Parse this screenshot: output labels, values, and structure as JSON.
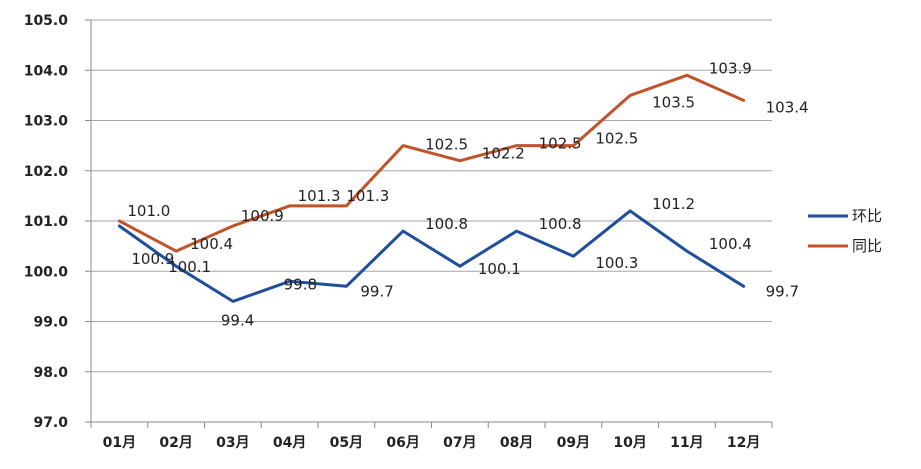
{
  "chart_data": {
    "type": "line",
    "categories": [
      "01月",
      "02月",
      "03月",
      "04月",
      "05月",
      "06月",
      "07月",
      "08月",
      "09月",
      "10月",
      "11月",
      "12月"
    ],
    "ylim": [
      97.0,
      105.0
    ],
    "yticks": [
      "97.0",
      "98.0",
      "99.0",
      "100.0",
      "101.0",
      "102.0",
      "103.0",
      "104.0",
      "105.0"
    ],
    "grid": true,
    "legend_position": "right",
    "series": [
      {
        "name": "环比",
        "color": "#1f4e9c",
        "values": [
          100.9,
          100.1,
          99.4,
          99.8,
          99.7,
          100.8,
          100.1,
          100.8,
          100.3,
          101.2,
          100.4,
          99.7
        ],
        "labels": [
          "100.9",
          "100.1",
          "99.4",
          "99.8",
          "99.7",
          "100.8",
          "100.1",
          "100.8",
          "100.3",
          "101.2",
          "100.4",
          "99.7"
        ]
      },
      {
        "name": "同比",
        "color": "#c0532a",
        "values": [
          101.0,
          100.4,
          100.9,
          101.3,
          101.3,
          102.5,
          102.2,
          102.5,
          102.5,
          103.5,
          103.9,
          103.4
        ],
        "labels": [
          "101.0",
          "100.4",
          "100.9",
          "101.3",
          "101.3",
          "102.5",
          "102.2",
          "102.5",
          "102.5",
          "103.5",
          "103.9",
          "103.4"
        ]
      }
    ]
  }
}
